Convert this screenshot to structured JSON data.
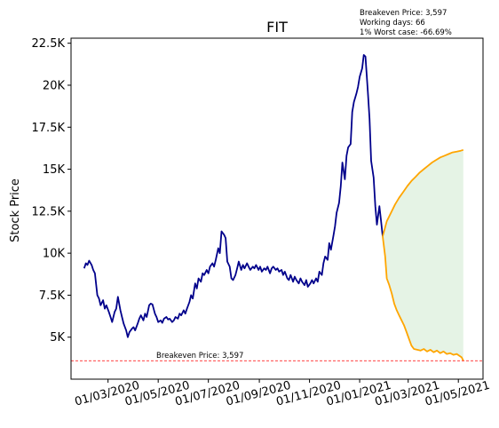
{
  "chart_data": {
    "type": "line",
    "title": "FIT",
    "xlabel": "",
    "ylabel": "Stock Price",
    "xlim": [
      "2020-01-16",
      "2021-05-31"
    ],
    "ylim": [
      2500,
      22800
    ],
    "grid": false,
    "x_ticks": [
      {
        "date": "2020-03-01",
        "label": "01/03/2020"
      },
      {
        "date": "2020-05-01",
        "label": "01/05/2020"
      },
      {
        "date": "2020-07-01",
        "label": "01/07/2020"
      },
      {
        "date": "2020-09-01",
        "label": "01/09/2020"
      },
      {
        "date": "2020-11-01",
        "label": "01/11/2020"
      },
      {
        "date": "2021-01-01",
        "label": "01/01/2021"
      },
      {
        "date": "2021-03-01",
        "label": "01/03/2021"
      },
      {
        "date": "2021-05-01",
        "label": "01/05/2021"
      }
    ],
    "y_ticks": [
      {
        "value": 5000,
        "label": "5K"
      },
      {
        "value": 7500,
        "label": "7.5K"
      },
      {
        "value": 10000,
        "label": "10K"
      },
      {
        "value": 12500,
        "label": "12.5K"
      },
      {
        "value": 15000,
        "label": "15K"
      },
      {
        "value": 17500,
        "label": "17.5K"
      },
      {
        "value": 20000,
        "label": "20K"
      },
      {
        "value": 22500,
        "label": "22.5K"
      }
    ],
    "annotations": {
      "breakeven_price": "Breakeven Price: 3,597",
      "working_days": "Working days: 66",
      "worst_case": "1% Worst case: -66.69%",
      "breakeven_line_label": "Breakeven Price: 3,597"
    },
    "breakeven_value": 3597,
    "series": [
      {
        "key": "history",
        "color": "#00008b",
        "points": [
          [
            "2020-02-01",
            9100
          ],
          [
            "2020-02-03",
            9400
          ],
          [
            "2020-02-05",
            9300
          ],
          [
            "2020-02-07",
            9550
          ],
          [
            "2020-02-10",
            9300
          ],
          [
            "2020-02-12",
            9000
          ],
          [
            "2020-02-14",
            8800
          ],
          [
            "2020-02-17",
            7500
          ],
          [
            "2020-02-19",
            7300
          ],
          [
            "2020-02-21",
            6900
          ],
          [
            "2020-02-24",
            7200
          ],
          [
            "2020-02-26",
            6700
          ],
          [
            "2020-02-28",
            6900
          ],
          [
            "2020-03-02",
            6500
          ],
          [
            "2020-03-04",
            6200
          ],
          [
            "2020-03-06",
            5900
          ],
          [
            "2020-03-09",
            6500
          ],
          [
            "2020-03-11",
            6700
          ],
          [
            "2020-03-13",
            7400
          ],
          [
            "2020-03-16",
            6600
          ],
          [
            "2020-03-18",
            6200
          ],
          [
            "2020-03-20",
            5800
          ],
          [
            "2020-03-23",
            5400
          ],
          [
            "2020-03-25",
            5000
          ],
          [
            "2020-03-27",
            5300
          ],
          [
            "2020-03-30",
            5500
          ],
          [
            "2020-04-01",
            5600
          ],
          [
            "2020-04-03",
            5400
          ],
          [
            "2020-04-06",
            5800
          ],
          [
            "2020-04-08",
            6100
          ],
          [
            "2020-04-10",
            6300
          ],
          [
            "2020-04-13",
            6000
          ],
          [
            "2020-04-15",
            6400
          ],
          [
            "2020-04-17",
            6200
          ],
          [
            "2020-04-20",
            6900
          ],
          [
            "2020-04-22",
            7000
          ],
          [
            "2020-04-24",
            6950
          ],
          [
            "2020-04-27",
            6400
          ],
          [
            "2020-04-29",
            6200
          ],
          [
            "2020-05-01",
            5900
          ],
          [
            "2020-05-04",
            6000
          ],
          [
            "2020-05-06",
            5850
          ],
          [
            "2020-05-08",
            6100
          ],
          [
            "2020-05-11",
            6200
          ],
          [
            "2020-05-13",
            6050
          ],
          [
            "2020-05-15",
            6100
          ],
          [
            "2020-05-18",
            5900
          ],
          [
            "2020-05-20",
            6000
          ],
          [
            "2020-05-22",
            6200
          ],
          [
            "2020-05-25",
            6100
          ],
          [
            "2020-05-27",
            6400
          ],
          [
            "2020-05-29",
            6300
          ],
          [
            "2020-06-01",
            6600
          ],
          [
            "2020-06-03",
            6400
          ],
          [
            "2020-06-05",
            6700
          ],
          [
            "2020-06-08",
            7100
          ],
          [
            "2020-06-10",
            7500
          ],
          [
            "2020-06-12",
            7300
          ],
          [
            "2020-06-15",
            8200
          ],
          [
            "2020-06-17",
            7900
          ],
          [
            "2020-06-19",
            8500
          ],
          [
            "2020-06-22",
            8300
          ],
          [
            "2020-06-24",
            8800
          ],
          [
            "2020-06-26",
            8700
          ],
          [
            "2020-06-29",
            9000
          ],
          [
            "2020-07-01",
            8800
          ],
          [
            "2020-07-03",
            9200
          ],
          [
            "2020-07-06",
            9400
          ],
          [
            "2020-07-08",
            9200
          ],
          [
            "2020-07-10",
            9600
          ],
          [
            "2020-07-13",
            10300
          ],
          [
            "2020-07-15",
            10000
          ],
          [
            "2020-07-17",
            11300
          ],
          [
            "2020-07-20",
            11100
          ],
          [
            "2020-07-22",
            10900
          ],
          [
            "2020-07-24",
            9500
          ],
          [
            "2020-07-27",
            9200
          ],
          [
            "2020-07-29",
            8500
          ],
          [
            "2020-07-31",
            8400
          ],
          [
            "2020-08-03",
            8700
          ],
          [
            "2020-08-05",
            9100
          ],
          [
            "2020-08-07",
            9500
          ],
          [
            "2020-08-10",
            9000
          ],
          [
            "2020-08-12",
            9300
          ],
          [
            "2020-08-14",
            9100
          ],
          [
            "2020-08-17",
            9400
          ],
          [
            "2020-08-19",
            9200
          ],
          [
            "2020-08-21",
            9000
          ],
          [
            "2020-08-24",
            9200
          ],
          [
            "2020-08-26",
            9100
          ],
          [
            "2020-08-28",
            9300
          ],
          [
            "2020-08-31",
            9000
          ],
          [
            "2020-09-02",
            9200
          ],
          [
            "2020-09-04",
            8900
          ],
          [
            "2020-09-07",
            9100
          ],
          [
            "2020-09-09",
            9000
          ],
          [
            "2020-09-11",
            9200
          ],
          [
            "2020-09-14",
            8800
          ],
          [
            "2020-09-16",
            9100
          ],
          [
            "2020-09-18",
            9200
          ],
          [
            "2020-09-21",
            9000
          ],
          [
            "2020-09-23",
            9100
          ],
          [
            "2020-09-25",
            8900
          ],
          [
            "2020-09-28",
            9000
          ],
          [
            "2020-09-30",
            8700
          ],
          [
            "2020-10-02",
            8900
          ],
          [
            "2020-10-05",
            8500
          ],
          [
            "2020-10-07",
            8400
          ],
          [
            "2020-10-09",
            8700
          ],
          [
            "2020-10-12",
            8300
          ],
          [
            "2020-10-14",
            8600
          ],
          [
            "2020-10-16",
            8400
          ],
          [
            "2020-10-19",
            8200
          ],
          [
            "2020-10-21",
            8500
          ],
          [
            "2020-10-23",
            8300
          ],
          [
            "2020-10-26",
            8100
          ],
          [
            "2020-10-28",
            8400
          ],
          [
            "2020-10-30",
            8000
          ],
          [
            "2020-11-02",
            8200
          ],
          [
            "2020-11-04",
            8400
          ],
          [
            "2020-11-06",
            8200
          ],
          [
            "2020-11-09",
            8500
          ],
          [
            "2020-11-11",
            8300
          ],
          [
            "2020-11-13",
            8900
          ],
          [
            "2020-11-16",
            8700
          ],
          [
            "2020-11-18",
            9400
          ],
          [
            "2020-11-20",
            9800
          ],
          [
            "2020-11-23",
            9600
          ],
          [
            "2020-11-25",
            10600
          ],
          [
            "2020-11-27",
            10200
          ],
          [
            "2020-11-30",
            11000
          ],
          [
            "2020-12-02",
            11600
          ],
          [
            "2020-12-04",
            12400
          ],
          [
            "2020-12-07",
            13000
          ],
          [
            "2020-12-09",
            14000
          ],
          [
            "2020-12-11",
            15400
          ],
          [
            "2020-12-14",
            14400
          ],
          [
            "2020-12-16",
            15800
          ],
          [
            "2020-12-18",
            16300
          ],
          [
            "2020-12-21",
            16500
          ],
          [
            "2020-12-23",
            18400
          ],
          [
            "2020-12-25",
            19000
          ],
          [
            "2020-12-28",
            19500
          ],
          [
            "2020-12-30",
            19900
          ],
          [
            "2021-01-01",
            20500
          ],
          [
            "2021-01-04",
            21000
          ],
          [
            "2021-01-06",
            21800
          ],
          [
            "2021-01-08",
            21700
          ],
          [
            "2021-01-11",
            19600
          ],
          [
            "2021-01-13",
            18000
          ],
          [
            "2021-01-15",
            15500
          ],
          [
            "2021-01-18",
            14500
          ],
          [
            "2021-01-20",
            12800
          ],
          [
            "2021-01-22",
            11700
          ],
          [
            "2021-01-25",
            12800
          ],
          [
            "2021-01-27",
            11900
          ],
          [
            "2021-01-29",
            11000
          ]
        ]
      },
      {
        "key": "forecast_upper",
        "color": "#ffa500",
        "points": [
          [
            "2021-01-29",
            11000
          ],
          [
            "2021-02-03",
            11900
          ],
          [
            "2021-02-08",
            12400
          ],
          [
            "2021-02-13",
            12900
          ],
          [
            "2021-02-18",
            13300
          ],
          [
            "2021-02-23",
            13650
          ],
          [
            "2021-02-28",
            14000
          ],
          [
            "2021-03-05",
            14300
          ],
          [
            "2021-03-10",
            14550
          ],
          [
            "2021-03-15",
            14800
          ],
          [
            "2021-03-20",
            15000
          ],
          [
            "2021-03-25",
            15200
          ],
          [
            "2021-03-30",
            15400
          ],
          [
            "2021-04-04",
            15550
          ],
          [
            "2021-04-09",
            15700
          ],
          [
            "2021-04-14",
            15800
          ],
          [
            "2021-04-19",
            15900
          ],
          [
            "2021-04-24",
            16000
          ],
          [
            "2021-04-29",
            16050
          ],
          [
            "2021-05-04",
            16100
          ],
          [
            "2021-05-07",
            16150
          ]
        ]
      },
      {
        "key": "forecast_lower",
        "color": "#ffa500",
        "points": [
          [
            "2021-01-29",
            11000
          ],
          [
            "2021-02-01",
            9800
          ],
          [
            "2021-02-03",
            8500
          ],
          [
            "2021-02-06",
            8100
          ],
          [
            "2021-02-09",
            7600
          ],
          [
            "2021-02-12",
            7000
          ],
          [
            "2021-02-15",
            6600
          ],
          [
            "2021-02-18",
            6300
          ],
          [
            "2021-02-21",
            6000
          ],
          [
            "2021-02-24",
            5700
          ],
          [
            "2021-02-27",
            5300
          ],
          [
            "2021-03-02",
            4900
          ],
          [
            "2021-03-05",
            4500
          ],
          [
            "2021-03-08",
            4300
          ],
          [
            "2021-03-12",
            4250
          ],
          [
            "2021-03-16",
            4200
          ],
          [
            "2021-03-20",
            4300
          ],
          [
            "2021-03-24",
            4150
          ],
          [
            "2021-03-28",
            4250
          ],
          [
            "2021-04-01",
            4100
          ],
          [
            "2021-04-05",
            4200
          ],
          [
            "2021-04-09",
            4050
          ],
          [
            "2021-04-13",
            4150
          ],
          [
            "2021-04-17",
            4000
          ],
          [
            "2021-04-21",
            4050
          ],
          [
            "2021-04-25",
            3950
          ],
          [
            "2021-04-29",
            4000
          ],
          [
            "2021-05-02",
            3900
          ],
          [
            "2021-05-05",
            3800
          ],
          [
            "2021-05-07",
            3600
          ]
        ]
      }
    ],
    "band_fill_color": "#2ca02c",
    "breakeven_line_color": "#ff0000"
  }
}
